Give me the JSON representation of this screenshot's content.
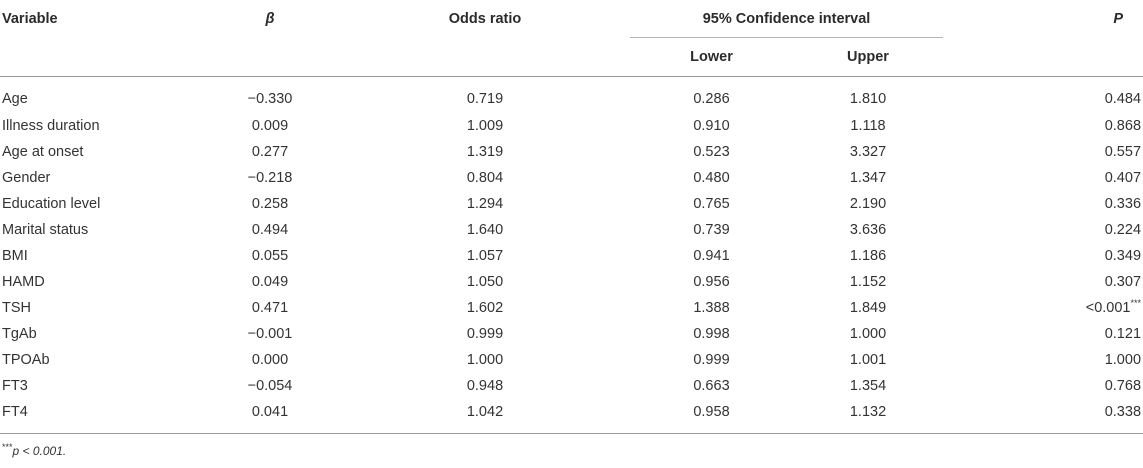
{
  "headers": {
    "variable": "Variable",
    "beta": "β",
    "odds_ratio": "Odds ratio",
    "ci": "95% Confidence interval",
    "lower": "Lower",
    "upper": "Upper",
    "p": "P"
  },
  "rows": [
    {
      "variable": "Age",
      "beta": "−0.330",
      "or": "0.719",
      "lower": "0.286",
      "upper": "1.810",
      "p": "0.484",
      "sig": ""
    },
    {
      "variable": "Illness duration",
      "beta": "0.009",
      "or": "1.009",
      "lower": "0.910",
      "upper": "1.118",
      "p": "0.868",
      "sig": ""
    },
    {
      "variable": "Age at onset",
      "beta": "0.277",
      "or": "1.319",
      "lower": "0.523",
      "upper": "3.327",
      "p": "0.557",
      "sig": ""
    },
    {
      "variable": "Gender",
      "beta": "−0.218",
      "or": "0.804",
      "lower": "0.480",
      "upper": "1.347",
      "p": "0.407",
      "sig": ""
    },
    {
      "variable": "Education level",
      "beta": "0.258",
      "or": "1.294",
      "lower": "0.765",
      "upper": "2.190",
      "p": "0.336",
      "sig": ""
    },
    {
      "variable": "Marital status",
      "beta": "0.494",
      "or": "1.640",
      "lower": "0.739",
      "upper": "3.636",
      "p": "0.224",
      "sig": ""
    },
    {
      "variable": "BMI",
      "beta": "0.055",
      "or": "1.057",
      "lower": "0.941",
      "upper": "1.186",
      "p": "0.349",
      "sig": ""
    },
    {
      "variable": "HAMD",
      "beta": "0.049",
      "or": "1.050",
      "lower": "0.956",
      "upper": "1.152",
      "p": "0.307",
      "sig": ""
    },
    {
      "variable": "TSH",
      "beta": "0.471",
      "or": "1.602",
      "lower": "1.388",
      "upper": "1.849",
      "p": "<0.001",
      "sig": "***"
    },
    {
      "variable": "TgAb",
      "beta": "−0.001",
      "or": "0.999",
      "lower": "0.998",
      "upper": "1.000",
      "p": "0.121",
      "sig": ""
    },
    {
      "variable": "TPOAb",
      "beta": "0.000",
      "or": "1.000",
      "lower": "0.999",
      "upper": "1.001",
      "p": "1.000",
      "sig": ""
    },
    {
      "variable": "FT3",
      "beta": "−0.054",
      "or": "0.948",
      "lower": "0.663",
      "upper": "1.354",
      "p": "0.768",
      "sig": ""
    },
    {
      "variable": "FT4",
      "beta": "0.041",
      "or": "1.042",
      "lower": "0.958",
      "upper": "1.132",
      "p": "0.338",
      "sig": ""
    }
  ],
  "footnote": {
    "marker": "***",
    "text": "p < 0.001."
  }
}
